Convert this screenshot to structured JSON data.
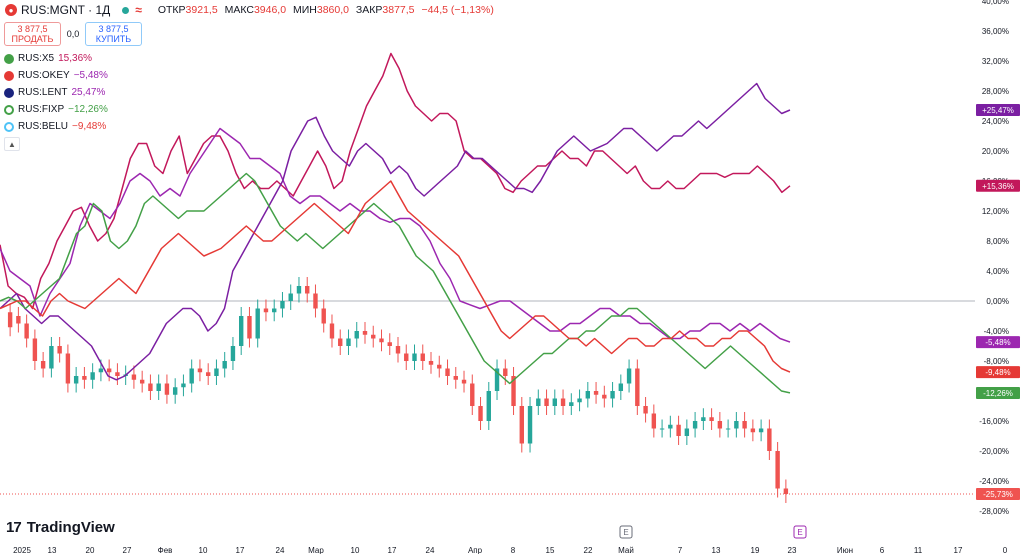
{
  "header": {
    "symbol": "RUS:MGNT · 1Д",
    "icon": "magnit-logo-icon",
    "eq_symbol": "≈",
    "open_label": "ОТКР",
    "open": "3921,5",
    "high_label": "МАКС",
    "high": "3946,0",
    "low_label": "МИН",
    "low": "3860,0",
    "close_label": "ЗАКР",
    "close": "3877,5",
    "change": "−44,5 (−1,13%)"
  },
  "trade": {
    "sell_price": "3 877,5",
    "sell_label": "ПРОДАТЬ",
    "spread": "0,0",
    "buy_price": "3 877,5",
    "buy_label": "КУПИТЬ"
  },
  "legend": [
    {
      "symbol": "RUS:X5",
      "value": "15,36%",
      "color": "#c2185b"
    },
    {
      "symbol": "RUS:OKEY",
      "value": "−5,48%",
      "color": "#9c27b0"
    },
    {
      "symbol": "RUS:LENT",
      "value": "25,47%",
      "color": "#9c27b0"
    },
    {
      "symbol": "RUS:FIXP",
      "value": "−12,26%",
      "color": "#43a047"
    },
    {
      "symbol": "RUS:BELU",
      "value": "−9,48%",
      "color": "#e53935"
    }
  ],
  "legend_collapse_icon": "chevron-up-icon",
  "brand": {
    "name": "TradingView",
    "icon": "tradingview-logo-icon"
  },
  "event_markers": [
    "E",
    "E"
  ],
  "chart_data": {
    "type": "line",
    "y_unit": "%",
    "ylim": [
      -29.5,
      40
    ],
    "y_ticks": [
      "40,00%",
      "36,00%",
      "32,00%",
      "28,00%",
      "24,00%",
      "20,00%",
      "16,00%",
      "12,00%",
      "8,00%",
      "4,00%",
      "0,00%",
      "-4,00%",
      "-8,00%",
      "-12,00%",
      "-16,00%",
      "-20,00%",
      "-24,00%",
      "-28,00%"
    ],
    "x_ticks": [
      "2025",
      "13",
      "20",
      "27",
      "Фев",
      "10",
      "17",
      "24",
      "Мар",
      "10",
      "17",
      "24",
      "Апр",
      "8",
      "15",
      "22",
      "Май",
      "7",
      "13",
      "19",
      "23",
      "Июн",
      "6",
      "11",
      "17",
      "0"
    ],
    "grid": false,
    "zero_line": true,
    "series": [
      {
        "name": "RUS:X5",
        "color": "#c2185b",
        "last_label": "+15,36%",
        "values": [
          7.5,
          2,
          1,
          0.5,
          -1,
          3,
          5,
          8,
          10,
          12,
          12.5,
          10,
          8,
          9,
          11,
          15,
          19,
          21,
          21,
          18,
          17,
          20,
          22,
          17,
          19,
          21,
          22,
          22,
          20,
          17,
          15,
          16,
          15,
          15,
          16,
          15,
          14,
          16,
          18,
          20,
          18,
          15,
          16,
          20,
          23,
          26,
          28,
          30,
          33,
          31,
          28,
          26,
          25,
          24,
          25,
          25,
          24,
          20,
          19,
          19,
          18,
          17,
          15,
          14.5,
          16,
          17,
          18,
          18,
          19,
          20,
          19,
          19,
          18,
          20,
          20,
          19,
          18,
          17,
          18,
          16,
          15,
          15,
          16,
          15,
          15,
          16,
          17,
          17,
          17,
          16.5,
          17,
          17,
          17,
          18,
          17,
          16,
          14.5,
          15.36
        ]
      },
      {
        "name": "RUS:OKEY",
        "color": "#9c27b0",
        "last_label": "-5,48%",
        "values": [
          7,
          4,
          3,
          2,
          -2,
          1,
          3,
          5,
          10,
          13,
          12,
          11,
          13,
          16,
          17,
          16,
          14,
          15,
          14,
          17,
          19,
          21,
          23,
          22,
          21,
          19,
          19,
          18,
          17,
          14,
          13,
          14,
          14,
          13,
          12,
          13,
          12,
          12,
          11,
          10.5,
          11,
          11,
          10,
          8,
          5,
          3,
          0,
          -0.5,
          -1,
          -0.5,
          0,
          0,
          -1,
          -2,
          -3,
          -4,
          -4,
          -3,
          -3,
          -2,
          -1,
          -1,
          -2,
          -2,
          -3,
          -3,
          -4,
          -5,
          -5,
          -4,
          -4,
          -3,
          -3,
          -4,
          -3,
          -4,
          -3,
          -4,
          -5,
          -5.48
        ]
      },
      {
        "name": "RUS:LENT",
        "color": "#7b1fa2",
        "last_label": "+25,47%",
        "values": [
          -1,
          0,
          1,
          -1,
          -2,
          -3,
          -2,
          -2,
          -3,
          -4,
          -5,
          -6,
          -8,
          -10,
          -10.5,
          -10,
          -9,
          -8,
          -7,
          -5,
          -3,
          -2,
          -1,
          -1,
          -2,
          -4,
          -3,
          -1,
          4,
          6,
          8,
          10,
          12,
          14,
          16,
          20,
          22,
          24,
          24.5,
          22,
          20,
          19,
          18,
          20,
          21,
          20,
          19,
          17,
          18,
          17,
          15,
          14,
          15,
          16,
          17,
          18,
          20,
          19,
          19,
          18,
          17,
          16,
          15,
          15,
          14.5,
          16,
          18,
          20,
          21,
          22,
          21,
          20,
          20.5,
          21,
          22,
          23,
          23,
          22,
          21,
          20,
          21,
          22,
          22,
          23,
          24,
          23,
          24,
          25,
          26,
          27,
          28,
          29,
          27,
          26,
          25,
          25.47
        ]
      },
      {
        "name": "RUS:FIXP",
        "color": "#43a047",
        "last_label": "-12,26%",
        "values": [
          0,
          0.5,
          0,
          -1,
          0,
          1,
          2,
          3,
          6,
          9,
          10,
          13,
          12,
          8,
          7,
          8,
          10,
          13,
          14,
          13,
          12,
          11,
          12,
          12,
          12,
          13,
          14,
          15,
          16,
          17,
          16,
          14,
          12,
          10,
          9,
          8,
          9,
          8,
          7,
          8,
          9,
          10,
          11,
          12,
          13,
          12,
          11,
          10,
          8,
          6,
          5,
          4,
          2,
          0,
          -2,
          -4,
          -6,
          -8,
          -9,
          -10,
          -11,
          -10,
          -9,
          -8,
          -7,
          -7,
          -6,
          -5,
          -5,
          -4,
          -4,
          -3,
          -2,
          -2,
          -1,
          -1,
          -2,
          -3,
          -4,
          -5,
          -6,
          -7,
          -8,
          -9,
          -8,
          -7,
          -6,
          -7,
          -8,
          -9,
          -10,
          -11,
          -12,
          -12.26
        ]
      },
      {
        "name": "RUS:BELU",
        "color": "#e53935",
        "last_label": "-9,48%",
        "values": [
          -1,
          -0.5,
          0,
          0,
          -1,
          -2,
          0,
          1,
          0,
          -0.5,
          -1,
          0,
          1,
          2,
          3,
          2,
          1,
          3,
          5,
          7,
          8,
          9,
          8,
          7,
          6,
          6.5,
          7,
          8,
          9,
          10,
          9,
          8,
          8,
          9,
          10,
          11,
          12,
          13,
          12,
          11,
          10,
          9,
          11,
          13,
          14,
          15,
          16,
          14,
          12,
          11,
          10,
          9,
          8,
          7,
          6,
          4,
          2,
          0,
          -2,
          -4,
          -5,
          -4,
          -3,
          -2,
          -2,
          -3,
          -4,
          -5,
          -5,
          -6,
          -5,
          -6,
          -7,
          -6,
          -5,
          -5,
          -6,
          -6,
          -5,
          -5,
          -4,
          -5,
          -5,
          -6,
          -6,
          -5,
          -5,
          -4,
          -4,
          -5,
          -6,
          -8,
          -9,
          -9.48
        ]
      }
    ],
    "main_series": {
      "name": "RUS:MGNT",
      "type": "candlestick",
      "up_color": "#26a69a",
      "down_color": "#ef5350",
      "last_label": "-25,73%",
      "candles": [
        [
          -1.5,
          -3.5
        ],
        [
          -2,
          -3
        ],
        [
          -3,
          -5
        ],
        [
          -5,
          -8
        ],
        [
          -8,
          -9
        ],
        [
          -9,
          -6
        ],
        [
          -6,
          -7
        ],
        [
          -7,
          -11
        ],
        [
          -11,
          -10
        ],
        [
          -10,
          -10.5
        ],
        [
          -10.5,
          -9.5
        ],
        [
          -9.5,
          -9
        ],
        [
          -9,
          -9.5
        ],
        [
          -9.5,
          -10
        ],
        [
          -10,
          -9.8
        ],
        [
          -9.8,
          -10.5
        ],
        [
          -10.5,
          -11
        ],
        [
          -11,
          -12
        ],
        [
          -12,
          -11
        ],
        [
          -11,
          -12.5
        ],
        [
          -12.5,
          -11.5
        ],
        [
          -11.5,
          -11
        ],
        [
          -11,
          -9
        ],
        [
          -9,
          -9.5
        ],
        [
          -9.5,
          -10
        ],
        [
          -10,
          -9
        ],
        [
          -9,
          -8
        ],
        [
          -8,
          -6
        ],
        [
          -6,
          -2
        ],
        [
          -2,
          -5
        ],
        [
          -5,
          -1
        ],
        [
          -1,
          -1.5
        ],
        [
          -1.5,
          -1
        ],
        [
          -1,
          0
        ],
        [
          0,
          1
        ],
        [
          1,
          2
        ],
        [
          2,
          1
        ],
        [
          1,
          -1
        ],
        [
          -1,
          -3
        ],
        [
          -3,
          -5
        ],
        [
          -5,
          -6
        ],
        [
          -6,
          -5
        ],
        [
          -5,
          -4
        ],
        [
          -4,
          -4.5
        ],
        [
          -4.5,
          -5
        ],
        [
          -5,
          -5.5
        ],
        [
          -5.5,
          -6
        ],
        [
          -6,
          -7
        ],
        [
          -7,
          -8
        ],
        [
          -8,
          -7
        ],
        [
          -7,
          -8
        ],
        [
          -8,
          -8.5
        ],
        [
          -8.5,
          -9
        ],
        [
          -9,
          -10
        ],
        [
          -10,
          -10.5
        ],
        [
          -10.5,
          -11
        ],
        [
          -11,
          -14
        ],
        [
          -14,
          -16
        ],
        [
          -16,
          -12
        ],
        [
          -12,
          -9
        ],
        [
          -9,
          -10
        ],
        [
          -10,
          -14
        ],
        [
          -14,
          -19
        ],
        [
          -19,
          -14
        ],
        [
          -14,
          -13
        ],
        [
          -13,
          -14
        ],
        [
          -14,
          -13
        ],
        [
          -13,
          -14
        ],
        [
          -14,
          -13.5
        ],
        [
          -13.5,
          -13
        ],
        [
          -13,
          -12
        ],
        [
          -12,
          -12.5
        ],
        [
          -12.5,
          -13
        ],
        [
          -13,
          -12
        ],
        [
          -12,
          -11
        ],
        [
          -11,
          -9
        ],
        [
          -9,
          -14
        ],
        [
          -14,
          -15
        ],
        [
          -15,
          -17
        ],
        [
          -17,
          -17
        ],
        [
          -17,
          -16.5
        ],
        [
          -16.5,
          -18
        ],
        [
          -18,
          -17
        ],
        [
          -17,
          -16
        ],
        [
          -16,
          -15.5
        ],
        [
          -15.5,
          -16
        ],
        [
          -16,
          -17
        ],
        [
          -17,
          -17
        ],
        [
          -17,
          -16
        ],
        [
          -16,
          -17
        ],
        [
          -17,
          -17.5
        ],
        [
          -17.5,
          -17
        ],
        [
          -17,
          -20
        ],
        [
          -20,
          -25
        ],
        [
          -25,
          -25.73
        ]
      ]
    }
  }
}
